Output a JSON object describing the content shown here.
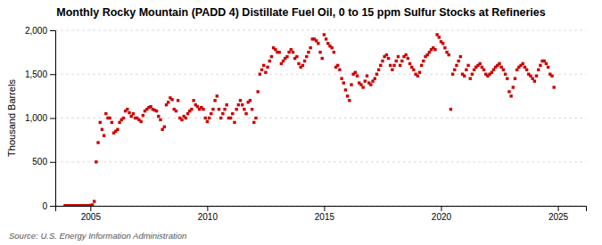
{
  "chart_data": {
    "type": "scatter",
    "title": "Monthly Rocky Mountain (PADD 4) Distillate Fuel Oil, 0 to 15 ppm Sulfur Stocks at Refineries",
    "ylabel": "Thousand Barrels",
    "source": "Source: U.S. Energy Information Administration",
    "color": "#cc0000",
    "marker": "square",
    "grid": "y",
    "xlim": [
      2003.5,
      2026.2
    ],
    "xticks": [
      2005,
      2010,
      2015,
      2020,
      2025
    ],
    "ylim": [
      0,
      2000
    ],
    "yticks": [
      0,
      500,
      {
        "value": 1000,
        "label": "1,000"
      },
      {
        "value": 1500,
        "label": "1,500"
      },
      {
        "value": 2000,
        "label": "2,000"
      }
    ],
    "x": [
      2003.917,
      2004.0,
      2004.083,
      2004.167,
      2004.25,
      2004.333,
      2004.417,
      2004.5,
      2004.583,
      2004.667,
      2004.75,
      2004.833,
      2004.917,
      2005.0,
      2005.083,
      2005.167,
      2005.25,
      2005.333,
      2005.417,
      2005.5,
      2005.583,
      2005.667,
      2005.75,
      2005.833,
      2005.917,
      2006.0,
      2006.083,
      2006.167,
      2006.25,
      2006.333,
      2006.417,
      2006.5,
      2006.583,
      2006.667,
      2006.75,
      2006.833,
      2006.917,
      2007.0,
      2007.083,
      2007.167,
      2007.25,
      2007.333,
      2007.417,
      2007.5,
      2007.583,
      2007.667,
      2007.75,
      2007.833,
      2007.917,
      2008.0,
      2008.083,
      2008.167,
      2008.25,
      2008.333,
      2008.417,
      2008.5,
      2008.583,
      2008.667,
      2008.75,
      2008.833,
      2008.917,
      2009.0,
      2009.083,
      2009.167,
      2009.25,
      2009.333,
      2009.417,
      2009.5,
      2009.583,
      2009.667,
      2009.75,
      2009.833,
      2009.917,
      2010.0,
      2010.083,
      2010.167,
      2010.25,
      2010.333,
      2010.417,
      2010.5,
      2010.583,
      2010.667,
      2010.75,
      2010.833,
      2010.917,
      2011.0,
      2011.083,
      2011.167,
      2011.25,
      2011.333,
      2011.417,
      2011.5,
      2011.583,
      2011.667,
      2011.75,
      2011.833,
      2011.917,
      2012.0,
      2012.083,
      2012.167,
      2012.25,
      2012.333,
      2012.417,
      2012.5,
      2012.583,
      2012.667,
      2012.75,
      2012.833,
      2012.917,
      2013.0,
      2013.083,
      2013.167,
      2013.25,
      2013.333,
      2013.417,
      2013.5,
      2013.583,
      2013.667,
      2013.75,
      2013.833,
      2013.917,
      2014.0,
      2014.083,
      2014.167,
      2014.25,
      2014.333,
      2014.417,
      2014.5,
      2014.583,
      2014.667,
      2014.75,
      2014.833,
      2014.917,
      2015.0,
      2015.083,
      2015.167,
      2015.25,
      2015.333,
      2015.417,
      2015.5,
      2015.583,
      2015.667,
      2015.75,
      2015.833,
      2015.917,
      2016.0,
      2016.083,
      2016.167,
      2016.25,
      2016.333,
      2016.417,
      2016.5,
      2016.583,
      2016.667,
      2016.75,
      2016.833,
      2016.917,
      2017.0,
      2017.083,
      2017.167,
      2017.25,
      2017.333,
      2017.417,
      2017.5,
      2017.583,
      2017.667,
      2017.75,
      2017.833,
      2017.917,
      2018.0,
      2018.083,
      2018.167,
      2018.25,
      2018.333,
      2018.417,
      2018.5,
      2018.583,
      2018.667,
      2018.75,
      2018.833,
      2018.917,
      2019.0,
      2019.083,
      2019.167,
      2019.25,
      2019.333,
      2019.417,
      2019.5,
      2019.583,
      2019.667,
      2019.75,
      2019.833,
      2019.917,
      2020.0,
      2020.083,
      2020.167,
      2020.25,
      2020.333,
      2020.417,
      2020.5,
      2020.583,
      2020.667,
      2020.75,
      2020.833,
      2020.917,
      2021.0,
      2021.083,
      2021.167,
      2021.25,
      2021.333,
      2021.417,
      2021.5,
      2021.583,
      2021.667,
      2021.75,
      2021.833,
      2021.917,
      2022.0,
      2022.083,
      2022.167,
      2022.25,
      2022.333,
      2022.417,
      2022.5,
      2022.583,
      2022.667,
      2022.75,
      2022.833,
      2022.917,
      2023.0,
      2023.083,
      2023.167,
      2023.25,
      2023.333,
      2023.417,
      2023.5,
      2023.583,
      2023.667,
      2023.75,
      2023.833,
      2023.917,
      2024.0,
      2024.083,
      2024.167,
      2024.25,
      2024.333,
      2024.417,
      2024.5,
      2024.583,
      2024.667,
      2024.75,
      2024.833
    ],
    "values": [
      2,
      2,
      2,
      2,
      2,
      2,
      2,
      2,
      2,
      2,
      2,
      2,
      2,
      5,
      10,
      50,
      500,
      720,
      950,
      870,
      800,
      1050,
      1000,
      1000,
      950,
      830,
      850,
      870,
      950,
      980,
      1000,
      1080,
      1100,
      1060,
      1020,
      1050,
      1000,
      1000,
      980,
      960,
      1030,
      1080,
      1100,
      1120,
      1130,
      1100,
      1090,
      1080,
      1020,
      980,
      870,
      900,
      1150,
      1180,
      1230,
      1210,
      1100,
      1080,
      1200,
      1000,
      980,
      1020,
      1000,
      1050,
      1080,
      1100,
      1200,
      1150,
      1130,
      1100,
      1120,
      1100,
      1000,
      960,
      1000,
      1050,
      1100,
      1200,
      1250,
      1100,
      1000,
      1050,
      1100,
      1150,
      1000,
      1000,
      1050,
      950,
      1100,
      1150,
      1200,
      1150,
      1100,
      1050,
      1180,
      1200,
      1100,
      950,
      1000,
      1300,
      1500,
      1550,
      1600,
      1520,
      1580,
      1650,
      1700,
      1800,
      1780,
      1750,
      1750,
      1620,
      1650,
      1680,
      1700,
      1750,
      1780,
      1750,
      1680,
      1700,
      1620,
      1580,
      1600,
      1650,
      1700,
      1750,
      1800,
      1900,
      1900,
      1880,
      1850,
      1750,
      1680,
      1950,
      1900,
      1850,
      1820,
      1800,
      1750,
      1580,
      1600,
      1550,
      1450,
      1400,
      1320,
      1250,
      1200,
      1380,
      1500,
      1520,
      1480,
      1400,
      1380,
      1350,
      1420,
      1480,
      1400,
      1380,
      1420,
      1450,
      1500,
      1550,
      1600,
      1650,
      1700,
      1720,
      1680,
      1600,
      1550,
      1600,
      1650,
      1700,
      1600,
      1650,
      1700,
      1720,
      1680,
      1620,
      1580,
      1550,
      1500,
      1480,
      1520,
      1600,
      1650,
      1700,
      1720,
      1750,
      1780,
      1800,
      1780,
      1950,
      1920,
      1870,
      1850,
      1800,
      1750,
      1720,
      1100,
      1500,
      1550,
      1600,
      1650,
      1700,
      1500,
      1480,
      1550,
      1600,
      1450,
      1500,
      1550,
      1580,
      1600,
      1620,
      1580,
      1550,
      1500,
      1480,
      1500,
      1520,
      1550,
      1580,
      1600,
      1620,
      1580,
      1550,
      1500,
      1450,
      1300,
      1250,
      1350,
      1450,
      1550,
      1580,
      1600,
      1620,
      1580,
      1550,
      1500,
      1480,
      1450,
      1420,
      1480,
      1550,
      1600,
      1650,
      1650,
      1620,
      1580,
      1500,
      1480,
      1350
    ]
  }
}
